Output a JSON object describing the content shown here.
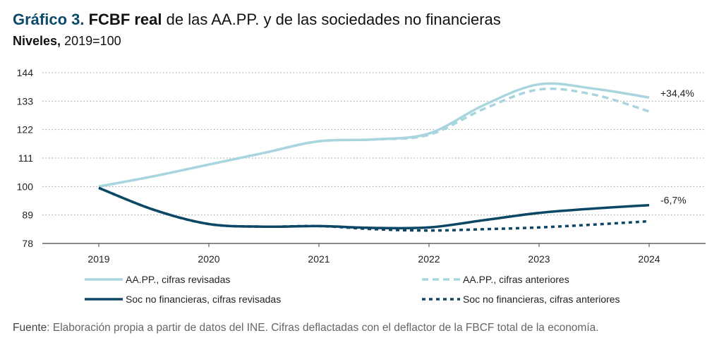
{
  "header": {
    "label": "Gráfico 3.",
    "bold": "FCBF real",
    "rest": "de las AA.PP. y de las sociedades no financieras"
  },
  "subheader": {
    "bold": "Niveles,",
    "rest": "2019=100"
  },
  "source": {
    "label": "Fuente",
    "text": ": Elaboración propia a partir de datos del INE. Cifras deflactadas con el deflactor de la FBCF total de la economía."
  },
  "chart_data": {
    "type": "line",
    "title": "FCBF real de las AA.PP. y de las sociedades no financieras",
    "subtitle": "Niveles, 2019=100",
    "xlabel": "",
    "ylabel": "",
    "x_ticks": [
      "2019",
      "2020",
      "2021",
      "2022",
      "2023",
      "2024"
    ],
    "y_ticks": [
      "144",
      "133",
      "122",
      "111",
      "100",
      "89",
      "78"
    ],
    "ylim": [
      78,
      144
    ],
    "grid": "horizontal-dotted",
    "legend_position": "bottom",
    "colors": {
      "light": "#a9d6de",
      "dark": "#0d4766"
    },
    "series": [
      {
        "name": "AA.PP., cifras revisadas",
        "style": "solid",
        "color": "#a9d6de",
        "x": [
          2019,
          2019.5,
          2020,
          2020.5,
          2021,
          2021.5,
          2022,
          2022.5,
          2023,
          2023.5,
          2024
        ],
        "y": [
          100,
          104,
          108.5,
          113,
          117.5,
          118.2,
          120.5,
          131.5,
          139.5,
          137.8,
          134.4
        ]
      },
      {
        "name": "AA.PP., cifras anteriores",
        "style": "dashed",
        "color": "#a9d6de",
        "x": [
          2019,
          2019.5,
          2020,
          2020.5,
          2021,
          2021.5,
          2022,
          2022.5,
          2023,
          2023.5,
          2024
        ],
        "y": [
          100,
          104,
          108.5,
          113,
          117.5,
          118.2,
          120,
          130,
          137.5,
          135.5,
          129
        ]
      },
      {
        "name": "Soc no financieras, cifras revisadas",
        "style": "solid",
        "color": "#0d4766",
        "x": [
          2019,
          2019.5,
          2020,
          2020.5,
          2021,
          2021.5,
          2022,
          2022.5,
          2023,
          2023.5,
          2024
        ],
        "y": [
          99.5,
          91,
          85.5,
          84.5,
          84.7,
          84,
          84.2,
          87,
          89.8,
          91.5,
          92.8
        ]
      },
      {
        "name": "Soc no financieras, cifras anteriores",
        "style": "dotted",
        "color": "#0d4766",
        "x": [
          2019,
          2019.5,
          2020,
          2020.5,
          2021,
          2021.5,
          2022,
          2022.5,
          2023,
          2023.5,
          2024
        ],
        "y": [
          99.5,
          91,
          85.5,
          84.5,
          84.7,
          83.5,
          83,
          83.5,
          84.2,
          85.3,
          86.6
        ]
      }
    ],
    "annotations": [
      {
        "text": "+34,4%",
        "series": 0
      },
      {
        "text": "-6,7%",
        "series": 2
      }
    ]
  }
}
